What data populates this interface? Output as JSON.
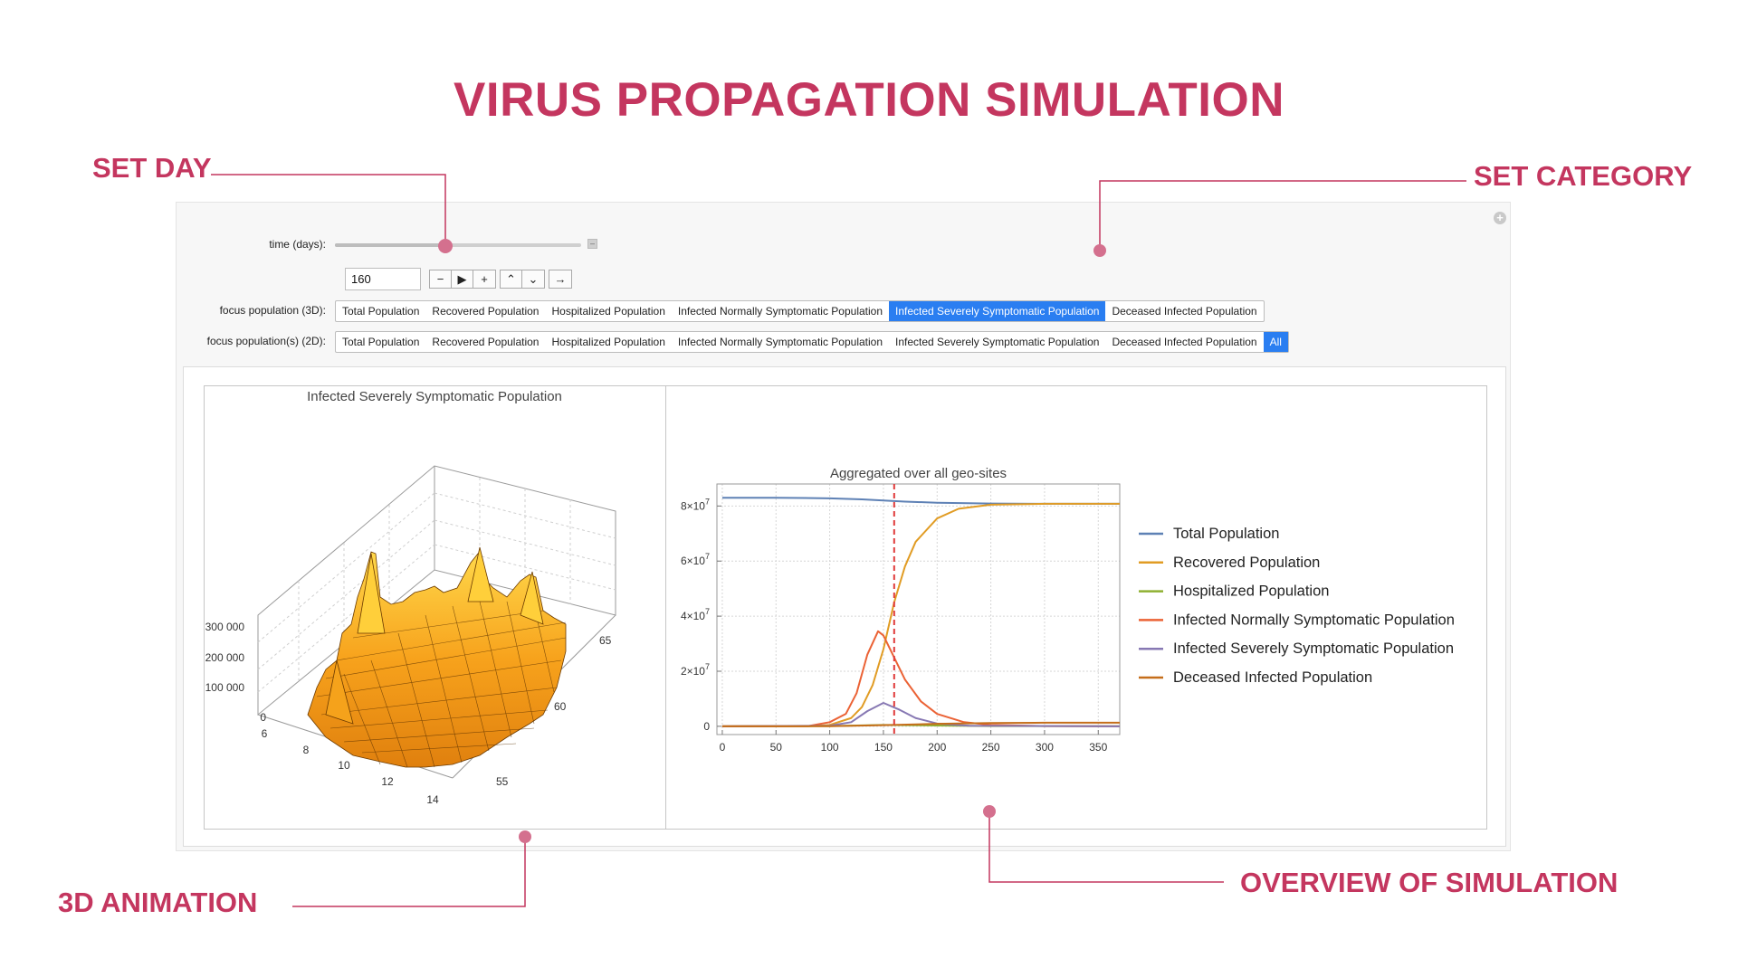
{
  "page": {
    "title": "VIRUS PROPAGATION SIMULATION",
    "accent_color": "#c4365f"
  },
  "callouts": {
    "set_day": "SET DAY",
    "set_category": "SET CATEGORY",
    "animation_3d": "3D ANIMATION",
    "overview": "OVERVIEW OF SIMULATION"
  },
  "controls": {
    "time_label": "time (days):",
    "time_value": "160",
    "time_slider_fraction": 0.45,
    "focus_3d_label": "focus population (3D):",
    "focus_2d_label": "focus population(s) (2D):",
    "playback_buttons": [
      "minus-icon",
      "play-icon",
      "plus-icon",
      "faster-icon",
      "slower-icon",
      "direction-icon"
    ],
    "options_3d": [
      {
        "label": "Total Population",
        "selected": false
      },
      {
        "label": "Recovered Population",
        "selected": false
      },
      {
        "label": "Hospitalized Population",
        "selected": false
      },
      {
        "label": "Infected Normally Symptomatic Population",
        "selected": false
      },
      {
        "label": "Infected Severely Symptomatic Population",
        "selected": true
      },
      {
        "label": "Deceased Infected Population",
        "selected": false
      }
    ],
    "options_2d": [
      {
        "label": "Total Population",
        "selected": false
      },
      {
        "label": "Recovered Population",
        "selected": false
      },
      {
        "label": "Hospitalized Population",
        "selected": false
      },
      {
        "label": "Infected Normally Symptomatic Population",
        "selected": false
      },
      {
        "label": "Infected Severely Symptomatic Population",
        "selected": false
      },
      {
        "label": "Deceased Infected Population",
        "selected": false
      },
      {
        "label": "All",
        "selected": true
      }
    ]
  },
  "chart_data": [
    {
      "type": "surface3d",
      "title": "Infected Severely Symptomatic Population",
      "z_ticks": [
        "0",
        "100 000",
        "200 000",
        "300 000"
      ],
      "x_ticks": [
        "6",
        "8",
        "10",
        "12",
        "14"
      ],
      "y_ticks": [
        "55",
        "60",
        "65"
      ],
      "surface_color": "#f5a21b"
    },
    {
      "type": "line",
      "title": "Aggregated over all geo-sites",
      "x_ticks": [
        0,
        50,
        100,
        150,
        200,
        250,
        300,
        350
      ],
      "xlim": [
        -5,
        370
      ],
      "ylim": [
        -3000000,
        88000000
      ],
      "y_tick_values": [
        0,
        20000000,
        40000000,
        60000000,
        80000000
      ],
      "y_tick_labels": [
        {
          "mantissa": "0",
          "exp": ""
        },
        {
          "mantissa": "2×10",
          "exp": "7"
        },
        {
          "mantissa": "4×10",
          "exp": "7"
        },
        {
          "mantissa": "6×10",
          "exp": "7"
        },
        {
          "mantissa": "8×10",
          "exp": "7"
        }
      ],
      "current_day_marker": 160,
      "grid": true,
      "legend_position": "right",
      "series": [
        {
          "name": "Total Population",
          "color": "#5e81b5",
          "x": [
            0,
            50,
            100,
            130,
            150,
            170,
            200,
            250,
            300,
            370
          ],
          "y": [
            83000000,
            83000000,
            82800000,
            82400000,
            82000000,
            81600000,
            81200000,
            80900000,
            80800000,
            80800000
          ]
        },
        {
          "name": "Recovered Population",
          "color": "#e19c24",
          "x": [
            0,
            80,
            100,
            120,
            130,
            140,
            150,
            160,
            170,
            180,
            200,
            220,
            250,
            300,
            370
          ],
          "y": [
            0,
            0,
            500000,
            3000000,
            7000000,
            15000000,
            28000000,
            45000000,
            58000000,
            67000000,
            75500000,
            79000000,
            80500000,
            80800000,
            80800000
          ]
        },
        {
          "name": "Hospitalized Population",
          "color": "#8fb032",
          "x": [
            0,
            100,
            150,
            200,
            250,
            370
          ],
          "y": [
            0,
            100000,
            500000,
            300000,
            100000,
            50000
          ]
        },
        {
          "name": "Infected Normally Symptomatic Population",
          "color": "#eb6235",
          "x": [
            0,
            80,
            100,
            115,
            125,
            135,
            145,
            150,
            160,
            170,
            185,
            200,
            225,
            250,
            300,
            370
          ],
          "y": [
            0,
            100000,
            1500000,
            4500000,
            12000000,
            26000000,
            34500000,
            33000000,
            25000000,
            17000000,
            9000000,
            4500000,
            1500000,
            500000,
            100000,
            0
          ]
        },
        {
          "name": "Infected Severely Symptomatic Population",
          "color": "#8778b3",
          "x": [
            0,
            100,
            120,
            135,
            150,
            165,
            180,
            200,
            230,
            370
          ],
          "y": [
            0,
            200000,
            1500000,
            5500000,
            8500000,
            6000000,
            3000000,
            1000000,
            200000,
            0
          ]
        },
        {
          "name": "Deceased Infected Population",
          "color": "#c56e1a",
          "x": [
            0,
            100,
            150,
            200,
            250,
            300,
            370
          ],
          "y": [
            0,
            50000,
            400000,
            900000,
            1200000,
            1300000,
            1300000
          ]
        }
      ]
    }
  ]
}
